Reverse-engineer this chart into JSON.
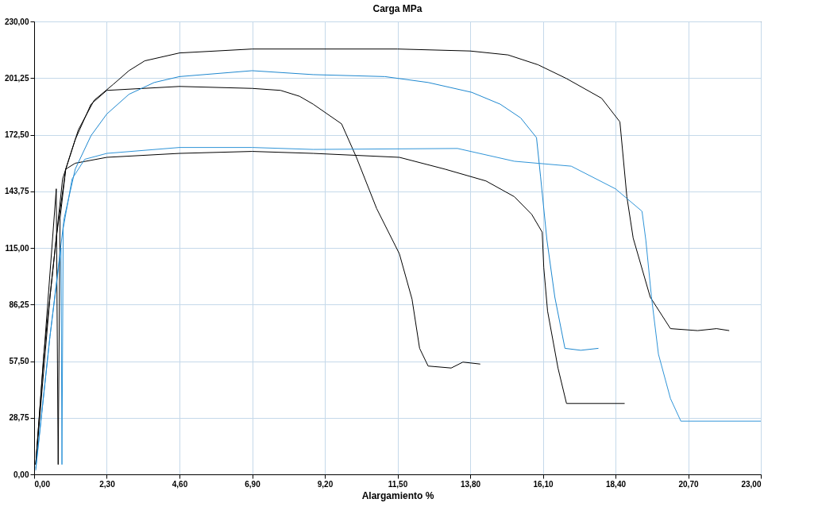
{
  "chart_data": {
    "type": "line",
    "title": "Carga   MPa",
    "xlabel": "Alargamiento   %",
    "xlim": [
      0,
      23
    ],
    "ylim": [
      0,
      230
    ],
    "xticks": [
      {
        "value": 0,
        "label": "0,00"
      },
      {
        "value": 2.3,
        "label": "2,30"
      },
      {
        "value": 4.6,
        "label": "4,60"
      },
      {
        "value": 6.9,
        "label": "6,90"
      },
      {
        "value": 9.2,
        "label": "9,20"
      },
      {
        "value": 11.5,
        "label": "11,50"
      },
      {
        "value": 13.8,
        "label": "13,80"
      },
      {
        "value": 16.1,
        "label": "16,10"
      },
      {
        "value": 18.4,
        "label": "18,40"
      },
      {
        "value": 20.7,
        "label": "20,70"
      },
      {
        "value": 23,
        "label": "23,00"
      }
    ],
    "yticks": [
      {
        "value": 0,
        "label": "0,00"
      },
      {
        "value": 28.75,
        "label": "28,75"
      },
      {
        "value": 57.5,
        "label": "57,50"
      },
      {
        "value": 86.25,
        "label": "86,25"
      },
      {
        "value": 115,
        "label": "115,00"
      },
      {
        "value": 143.75,
        "label": "143,75"
      },
      {
        "value": 172.5,
        "label": "172,50"
      },
      {
        "value": 201.25,
        "label": "201,25"
      },
      {
        "value": 230,
        "label": "230,00"
      }
    ],
    "grid": true,
    "marker": "none",
    "line_style": "solid",
    "series": [
      {
        "color": "#000000",
        "x": [
          0.05,
          0.3,
          0.7,
          1.0,
          1.4,
          1.9,
          2.5,
          3.0,
          3.5,
          4.6,
          6.9,
          9.2,
          11.5,
          13.8,
          15.0,
          15.95,
          16.85,
          17.96,
          18.54,
          18.76,
          18.96,
          19.5,
          20.14,
          21.0,
          21.6,
          22.0
        ],
        "values": [
          5,
          60,
          120,
          155,
          175,
          190,
          198,
          205,
          210,
          214,
          216,
          216,
          216,
          215,
          213,
          208,
          201,
          191,
          179,
          141,
          120,
          90,
          74,
          73,
          74,
          73
        ]
      },
      {
        "color": "#000000",
        "x": [
          0.05,
          0.5,
          0.9,
          1.3,
          1.8,
          2.3,
          4.6,
          6.9,
          7.8,
          8.4,
          8.83,
          9.73,
          10.2,
          10.84,
          11.56,
          11.96,
          12.2,
          12.47,
          13.2,
          13.57,
          14.12
        ],
        "values": [
          5,
          90,
          150,
          170,
          188,
          195,
          197,
          196,
          195,
          192,
          188,
          178,
          161,
          135,
          112,
          89,
          64,
          55,
          54,
          57,
          56
        ]
      },
      {
        "color": "#000000",
        "x": [
          0.05,
          0.7,
          0.76,
          0.82,
          1.0,
          1.3,
          2.3,
          4.6,
          6.9,
          8.83,
          11.56,
          13.0,
          14.3,
          15.2,
          15.75,
          16.08,
          16.13,
          16.25,
          16.58,
          16.85,
          18.69
        ],
        "values": [
          5,
          145,
          5,
          130,
          155,
          158,
          161,
          163,
          164,
          163,
          161,
          155,
          149,
          141,
          132,
          123,
          105,
          83,
          54,
          36,
          36
        ]
      },
      {
        "color": "#1e88d0",
        "x": [
          0.05,
          0.5,
          0.95,
          1.3,
          1.8,
          2.3,
          3.0,
          3.8,
          4.6,
          6.9,
          8.83,
          11.1,
          12.47,
          13.85,
          14.75,
          15.4,
          15.9,
          16.03,
          16.23,
          16.48,
          16.8,
          17.3,
          17.86
        ],
        "values": [
          3,
          70,
          130,
          155,
          172,
          183,
          193,
          199,
          202,
          205,
          203,
          202,
          199,
          194,
          188,
          181,
          171,
          151,
          119,
          90,
          64,
          63,
          64
        ]
      },
      {
        "color": "#2f94d8",
        "x": [
          0.05,
          0.5,
          0.85,
          0.88,
          0.92,
          1.2,
          1.6,
          2.3,
          4.6,
          6.9,
          8.83,
          13.4,
          15.2,
          17.0,
          18.4,
          19.24,
          19.36,
          19.54,
          19.76,
          20.14,
          20.47,
          23.0
        ],
        "values": [
          2,
          70,
          115,
          5,
          125,
          150,
          160,
          163,
          166,
          166,
          165,
          165.5,
          159,
          156.5,
          145,
          133.6,
          119,
          90,
          61,
          38.5,
          27,
          27
        ]
      }
    ]
  }
}
